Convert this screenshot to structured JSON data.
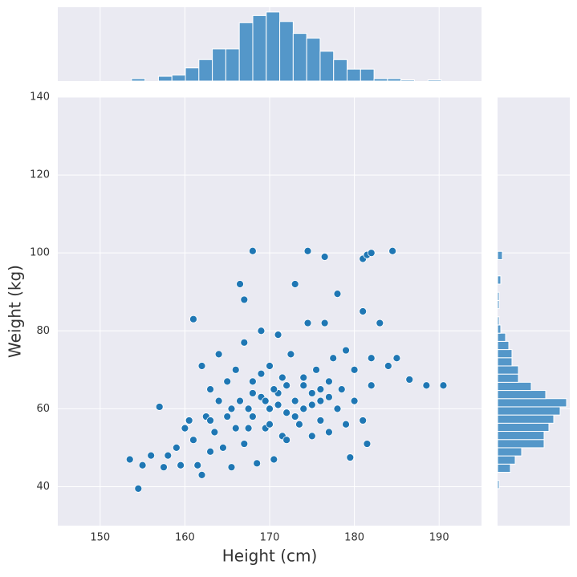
{
  "chart_data": [
    {
      "type": "scatter",
      "x_label": "Height (cm)",
      "y_label": "Weight (kg)",
      "color": "#1f77b4",
      "xlim": [
        145,
        195
      ],
      "ylim": [
        30,
        140
      ],
      "xticks": [
        150,
        160,
        170,
        180,
        190
      ],
      "yticks": [
        40,
        60,
        80,
        100,
        120,
        140
      ],
      "grid": true,
      "x": [
        154.5,
        153.5,
        155,
        156,
        157,
        157.5,
        158,
        159,
        159.5,
        160,
        160.5,
        161,
        161,
        161.5,
        162,
        162,
        162.5,
        163,
        163,
        163.5,
        164,
        164,
        164.5,
        165,
        165,
        165.5,
        166,
        166,
        166.5,
        167,
        167,
        167.5,
        168,
        168,
        168.5,
        169,
        169,
        169.5,
        170,
        170,
        170.5,
        171,
        171,
        171.5,
        172,
        172,
        172.5,
        173,
        173,
        173.5,
        174,
        174,
        174.5,
        175,
        175,
        175.5,
        176,
        176,
        176.5,
        177,
        177,
        177.5,
        178,
        178,
        178.5,
        179,
        179,
        180,
        180,
        181,
        181,
        182,
        182,
        183,
        184,
        185,
        186.5,
        188.5,
        190.5,
        168,
        174.5,
        176.5,
        181,
        181.5,
        182,
        184.5,
        179.5,
        181.5,
        166.5,
        167,
        171,
        169,
        172,
        170.5,
        174,
        176,
        163,
        165.5,
        167.5,
        173,
        175,
        177,
        168,
        170,
        171.5,
        169.5
      ],
      "y": [
        39.5,
        47,
        45.5,
        48,
        60.5,
        45,
        48,
        50,
        45.5,
        55,
        57,
        83,
        52,
        45.5,
        43,
        71,
        58,
        49,
        65,
        54,
        62,
        74,
        50,
        58,
        67,
        45,
        55,
        70,
        62,
        51,
        77,
        60,
        58,
        67,
        46,
        63,
        80,
        55,
        60,
        71,
        47,
        64,
        79,
        53,
        66,
        59,
        74,
        62,
        92,
        56,
        68,
        60,
        82,
        64,
        53,
        70,
        62,
        57,
        82,
        67,
        54,
        73,
        60,
        89.5,
        65,
        56,
        75,
        62,
        70,
        57,
        85,
        66,
        73,
        82,
        71,
        73,
        67.5,
        66,
        66,
        100.5,
        100.5,
        99,
        98.5,
        99.5,
        100,
        100.5,
        47.5,
        51,
        92,
        88,
        61,
        69,
        52,
        65,
        66,
        65,
        57,
        60,
        55,
        58,
        61,
        63,
        64,
        56,
        68,
        62
      ]
    },
    {
      "type": "histogram",
      "orientation": "vertical",
      "color": "#5497c9",
      "ylim": [
        0,
        62
      ],
      "bins": [
        153.7,
        155.29,
        156.88,
        158.47,
        160.06,
        161.65,
        163.24,
        164.83,
        166.42,
        168.01,
        169.6,
        171.19,
        172.78,
        174.37,
        175.96,
        177.55,
        179.14,
        180.73,
        182.32,
        183.91,
        185.5,
        187.09,
        188.68,
        190.27
      ],
      "values": [
        2,
        0,
        4,
        5,
        11,
        18,
        27,
        27,
        49,
        55,
        58,
        50,
        40,
        36,
        25,
        18,
        10,
        10,
        2,
        2,
        1,
        0,
        1
      ]
    },
    {
      "type": "histogram",
      "orientation": "horizontal",
      "color": "#5497c9",
      "xlim": [
        0,
        45
      ],
      "bins": [
        39.5,
        41.6,
        43.7,
        45.8,
        47.9,
        50.0,
        52.1,
        54.2,
        56.3,
        58.4,
        60.5,
        62.6,
        64.7,
        66.8,
        68.9,
        71.0,
        73.1,
        75.2,
        77.3,
        79.4,
        81.5,
        83.6,
        85.7,
        87.8,
        89.9,
        92.0,
        94.1,
        96.2,
        98.3,
        100.4
      ],
      "values": [
        1,
        0,
        8,
        11,
        15,
        29,
        29,
        32,
        35,
        39,
        43,
        30,
        21,
        13,
        13,
        9,
        9,
        7,
        5,
        2,
        1,
        0,
        1,
        1,
        0,
        2,
        0,
        0,
        3
      ]
    }
  ]
}
